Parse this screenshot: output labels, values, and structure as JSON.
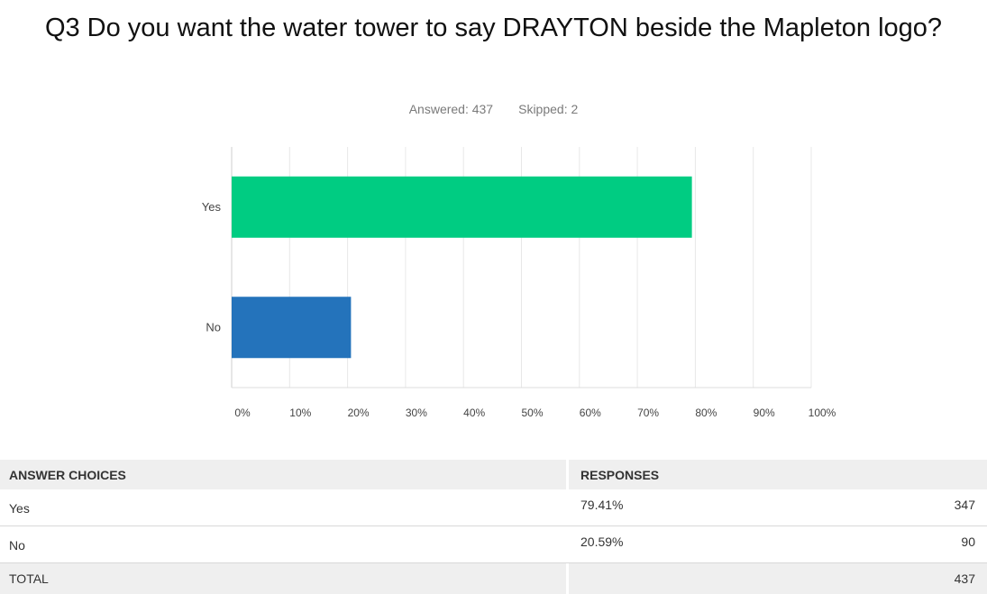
{
  "question": {
    "title": "Q3 Do you want the water tower to say DRAYTON beside the Mapleton logo?",
    "answered_label": "Answered: 437",
    "skipped_label": "Skipped: 2"
  },
  "chart_data": {
    "type": "bar",
    "orientation": "horizontal",
    "categories": [
      "Yes",
      "No"
    ],
    "values": [
      79.41,
      20.59
    ],
    "colors": [
      "#00cc82",
      "#2473bb"
    ],
    "xlim": [
      0,
      100
    ],
    "x_ticks": [
      "0%",
      "10%",
      "20%",
      "30%",
      "40%",
      "50%",
      "60%",
      "70%",
      "80%",
      "90%",
      "100%"
    ],
    "grid": true,
    "title": "",
    "xlabel": "",
    "ylabel": ""
  },
  "table": {
    "headers": {
      "choices": "ANSWER CHOICES",
      "responses": "RESPONSES"
    },
    "rows": [
      {
        "choice": "Yes",
        "percent": "79.41%",
        "count": "347"
      },
      {
        "choice": "No",
        "percent": "20.59%",
        "count": "90"
      }
    ],
    "total": {
      "label": "TOTAL",
      "count": "437"
    }
  }
}
